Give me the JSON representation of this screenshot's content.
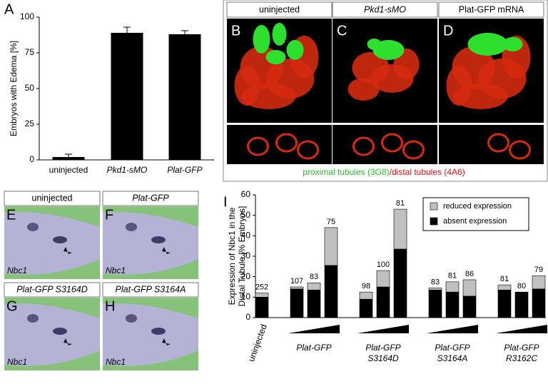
{
  "chart_data": [
    {
      "type": "bar",
      "label": "A",
      "ylabel": "Embryos with Edema [%]",
      "categories": [
        "uninjected",
        "Pkd1-sMO",
        "Plat-GFP"
      ],
      "values": [
        2,
        89,
        88
      ],
      "errors": [
        2,
        4,
        2.5
      ],
      "color": "#000000",
      "ylim": [
        0,
        100
      ],
      "yticks": [
        0,
        25,
        50,
        75,
        100
      ]
    },
    {
      "type": "stacked_bar",
      "label": "I",
      "ylabel": [
        "Expression of Nbc1 in the",
        "Distal Tubule [% Embryos]"
      ],
      "categories": [
        [
          "uninjected"
        ],
        null,
        [
          "Plat-GFP"
        ],
        null,
        null,
        [
          "Plat-GFP",
          "S3164D"
        ],
        null,
        null,
        [
          "Plat-GFP",
          "S3164A"
        ],
        null,
        null,
        [
          "Plat-GFP",
          "R3162C"
        ],
        null
      ],
      "n": [
        252,
        107,
        83,
        75,
        98,
        100,
        81,
        83,
        81,
        86,
        81,
        80,
        79
      ],
      "series": [
        {
          "name": "reduced expression",
          "color": "#c0c0c0",
          "values": [
            2,
            1,
            3.5,
            18.5,
            3.5,
            8,
            19.5,
            1,
            5,
            8,
            2.5,
            0,
            6.5
          ]
        },
        {
          "name": "absent expression",
          "color": "#000000",
          "values": [
            10,
            14,
            13.5,
            25.5,
            9,
            15,
            33.5,
            13.5,
            12.5,
            10.5,
            13.5,
            12.5,
            14
          ]
        }
      ],
      "ylim": [
        0,
        60
      ],
      "yticks": [
        0,
        10,
        20,
        30,
        40,
        50,
        60
      ],
      "legend": "top-right"
    }
  ],
  "microscopy": {
    "letters": [
      "B",
      "C",
      "D"
    ],
    "titles": [
      "uninjected",
      "Pkd1-sMO",
      "Plat-GFP mRNA"
    ],
    "caption": [
      "proximal tubules (3G8)",
      "/",
      "distal tubules (4A6)"
    ]
  },
  "in_situ": {
    "letters": [
      "E",
      "F",
      "G",
      "H"
    ],
    "titles": [
      "uninjected",
      "Plat-GFP",
      "Plat-GFP S3164D",
      "Plat-GFP S3164A"
    ],
    "stain": "Nbc1"
  }
}
